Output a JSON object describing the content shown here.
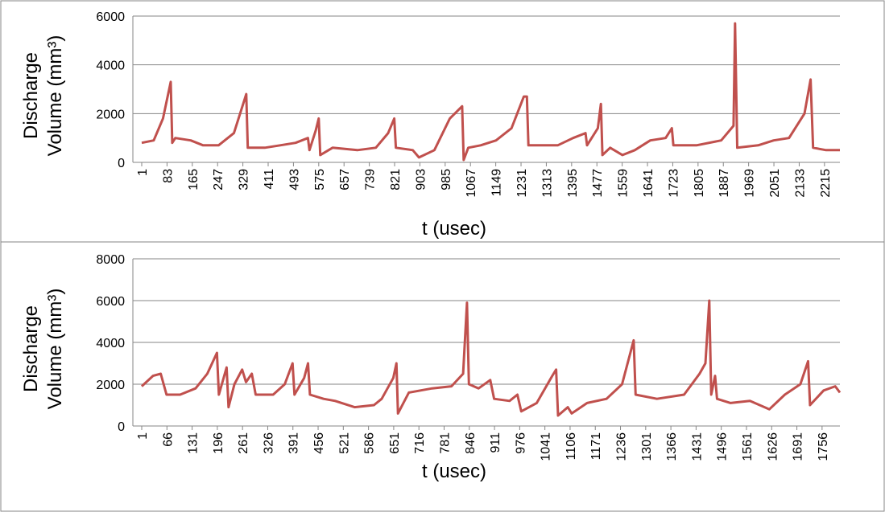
{
  "chart_data": [
    {
      "type": "line",
      "xlabel": "t (usec)",
      "ylabel": [
        "Discharge",
        "Volume (mm³)"
      ],
      "color": "#c0504d",
      "grid": true,
      "xlim": [
        1,
        2265
      ],
      "ylim": [
        0,
        6000
      ],
      "yticks": [
        0,
        2000,
        4000,
        6000
      ],
      "xticks": [
        1,
        83,
        165,
        247,
        329,
        411,
        493,
        575,
        657,
        739,
        821,
        903,
        985,
        1067,
        1149,
        1231,
        1313,
        1395,
        1477,
        1559,
        1641,
        1723,
        1805,
        1887,
        1969,
        2051,
        2133,
        2215
      ],
      "x": [
        1,
        40,
        70,
        95,
        100,
        110,
        160,
        200,
        250,
        300,
        340,
        345,
        400,
        450,
        500,
        540,
        545,
        565,
        575,
        580,
        620,
        700,
        760,
        800,
        820,
        825,
        880,
        900,
        950,
        1000,
        1040,
        1045,
        1060,
        1100,
        1150,
        1200,
        1240,
        1250,
        1255,
        1300,
        1350,
        1400,
        1440,
        1445,
        1480,
        1490,
        1495,
        1520,
        1560,
        1600,
        1650,
        1700,
        1720,
        1725,
        1800,
        1880,
        1920,
        1925,
        1932,
        2000,
        2050,
        2100,
        2150,
        2170,
        2178,
        2220,
        2265
      ],
      "values": [
        800,
        900,
        1800,
        3300,
        800,
        1000,
        900,
        700,
        700,
        1200,
        2800,
        600,
        600,
        700,
        800,
        1000,
        500,
        1300,
        1800,
        300,
        600,
        500,
        600,
        1200,
        1800,
        600,
        500,
        200,
        500,
        1800,
        2300,
        100,
        600,
        700,
        900,
        1400,
        2700,
        2700,
        700,
        700,
        700,
        1000,
        1200,
        700,
        1400,
        2400,
        300,
        600,
        300,
        500,
        900,
        1000,
        1400,
        700,
        700,
        900,
        1500,
        5700,
        600,
        700,
        900,
        1000,
        2000,
        3400,
        600,
        500,
        500
      ]
    },
    {
      "type": "line",
      "xlabel": "t (usec)",
      "ylabel": [
        "Discharge",
        "Volume (mm³)"
      ],
      "color": "#c0504d",
      "grid": true,
      "xlim": [
        1,
        1802
      ],
      "ylim": [
        0,
        8000
      ],
      "yticks": [
        0,
        2000,
        4000,
        6000,
        8000
      ],
      "xticks": [
        1,
        66,
        131,
        196,
        261,
        326,
        391,
        456,
        521,
        586,
        651,
        716,
        781,
        846,
        911,
        976,
        1041,
        1106,
        1171,
        1236,
        1301,
        1366,
        1431,
        1496,
        1561,
        1626,
        1691,
        1756
      ],
      "x": [
        1,
        30,
        50,
        65,
        100,
        140,
        170,
        195,
        200,
        220,
        225,
        240,
        260,
        270,
        285,
        295,
        340,
        370,
        390,
        395,
        420,
        430,
        435,
        470,
        500,
        550,
        600,
        620,
        650,
        658,
        662,
        690,
        750,
        800,
        830,
        840,
        845,
        870,
        900,
        910,
        950,
        970,
        980,
        1020,
        1060,
        1070,
        1075,
        1100,
        1110,
        1150,
        1200,
        1240,
        1270,
        1275,
        1330,
        1400,
        1440,
        1455,
        1465,
        1470,
        1480,
        1485,
        1520,
        1570,
        1620,
        1660,
        1700,
        1720,
        1725,
        1760,
        1790,
        1802
      ],
      "values": [
        1900,
        2400,
        2500,
        1500,
        1500,
        1800,
        2500,
        3500,
        1500,
        2800,
        900,
        2000,
        2700,
        2100,
        2500,
        1500,
        1500,
        2000,
        3000,
        1500,
        2300,
        3000,
        1500,
        1300,
        1200,
        900,
        1000,
        1300,
        2300,
        3000,
        600,
        1600,
        1800,
        1900,
        2500,
        5900,
        2000,
        1800,
        2200,
        1300,
        1200,
        1500,
        700,
        1100,
        2400,
        2700,
        500,
        900,
        600,
        1100,
        1300,
        2000,
        4100,
        1500,
        1300,
        1500,
        2500,
        3000,
        6000,
        1500,
        2400,
        1300,
        1100,
        1200,
        800,
        1500,
        2000,
        3100,
        1000,
        1700,
        1900,
        1600
      ]
    }
  ]
}
